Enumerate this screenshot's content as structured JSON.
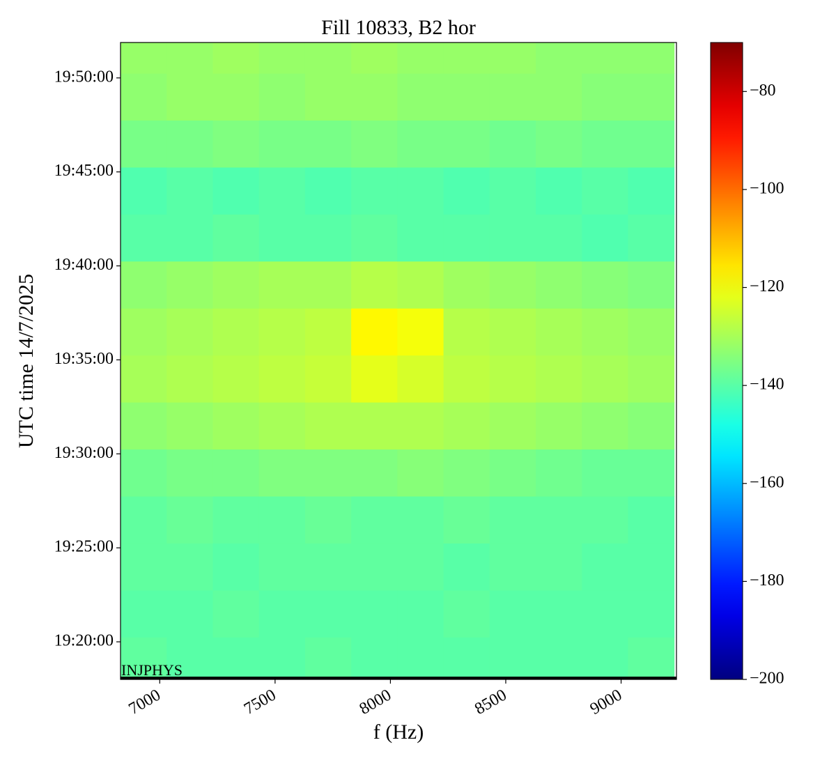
{
  "chart_data": {
    "type": "heatmap",
    "title": "Fill 10833, B2 hor",
    "x_label": "f (Hz)",
    "y_label": "UTC time 14/7/2025",
    "annotation": "INJPHYS",
    "colormap": "jet",
    "x": [
      6930,
      7130,
      7330,
      7530,
      7730,
      7930,
      8130,
      8330,
      8530,
      8730,
      8930,
      9130
    ],
    "y": [
      "19:19:00",
      "19:21:30",
      "19:24:00",
      "19:26:30",
      "19:29:00",
      "19:31:30",
      "19:34:00",
      "19:36:30",
      "19:39:00",
      "19:41:30",
      "19:44:00",
      "19:46:30",
      "19:49:00",
      "19:51:30"
    ],
    "z": [
      [
        -139,
        -140,
        -140,
        -140,
        -139,
        -140,
        -140,
        -140,
        -140,
        -140,
        -140,
        -139
      ],
      [
        -140,
        -140,
        -139,
        -140,
        -140,
        -140,
        -140,
        -139,
        -140,
        -140,
        -140,
        -140
      ],
      [
        -139,
        -139,
        -140,
        -139,
        -139,
        -139,
        -139,
        -140,
        -139,
        -139,
        -140,
        -140
      ],
      [
        -139,
        -138,
        -139,
        -139,
        -138,
        -139,
        -139,
        -138,
        -139,
        -139,
        -139,
        -140
      ],
      [
        -137,
        -136,
        -136,
        -135,
        -135,
        -135,
        -134,
        -135,
        -136,
        -137,
        -138,
        -138
      ],
      [
        -133,
        -132,
        -131,
        -130,
        -129,
        -129,
        -129,
        -130,
        -131,
        -132,
        -133,
        -134
      ],
      [
        -130,
        -129,
        -128,
        -127,
        -126,
        -122,
        -124,
        -127,
        -128,
        -129,
        -130,
        -131
      ],
      [
        -131,
        -130,
        -129,
        -128,
        -127,
        -118,
        -120,
        -128,
        -129,
        -130,
        -131,
        -132
      ],
      [
        -133,
        -132,
        -131,
        -130,
        -130,
        -128,
        -129,
        -131,
        -132,
        -133,
        -134,
        -135
      ],
      [
        -140,
        -140,
        -139,
        -140,
        -140,
        -139,
        -140,
        -140,
        -140,
        -140,
        -141,
        -140
      ],
      [
        -141,
        -140,
        -141,
        -140,
        -141,
        -140,
        -140,
        -141,
        -140,
        -141,
        -140,
        -141
      ],
      [
        -136,
        -136,
        -135,
        -136,
        -136,
        -135,
        -136,
        -136,
        -137,
        -136,
        -137,
        -137
      ],
      [
        -133,
        -132,
        -132,
        -133,
        -132,
        -132,
        -133,
        -133,
        -133,
        -133,
        -134,
        -134
      ],
      [
        -132,
        -132,
        -131,
        -132,
        -132,
        -131,
        -132,
        -132,
        -132,
        -133,
        -133,
        -133
      ]
    ],
    "xlim": [
      6830,
      9240
    ],
    "xticks": [
      7000,
      7500,
      8000,
      8500,
      9000
    ],
    "ylim": [
      "19:18:00",
      "19:51:53"
    ],
    "yticks": [
      "19:20:00",
      "19:25:00",
      "19:30:00",
      "19:35:00",
      "19:40:00",
      "19:45:00",
      "19:50:00"
    ],
    "zlim": [
      -200,
      -70
    ],
    "zticks": [
      {
        "value": -200,
        "label": "−200"
      },
      {
        "value": -180,
        "label": "−180"
      },
      {
        "value": -160,
        "label": "−160"
      },
      {
        "value": -140,
        "label": "−140"
      },
      {
        "value": -120,
        "label": "−120"
      },
      {
        "value": -100,
        "label": "−100"
      },
      {
        "value": -80,
        "label": "−80"
      }
    ]
  }
}
